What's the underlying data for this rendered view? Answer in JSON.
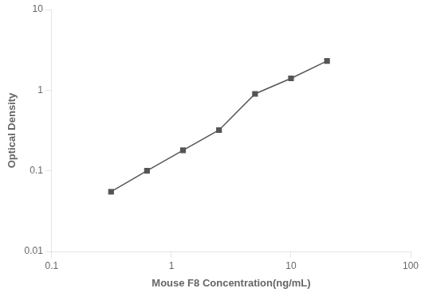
{
  "chart_data": {
    "type": "line",
    "x": [
      0.313,
      0.625,
      1.25,
      2.5,
      5.0,
      10.0,
      20.0
    ],
    "values": [
      0.055,
      0.1,
      0.18,
      0.32,
      0.9,
      1.4,
      2.3
    ],
    "color": "#555555",
    "marker": "square",
    "xlabel": "Mouse F8 Concentration(ng/mL)",
    "ylabel": "Optical Density",
    "xlim": [
      0.1,
      100
    ],
    "ylim": [
      0.01,
      10
    ],
    "xticks": [
      0.1,
      1,
      10,
      100
    ],
    "yticks": [
      0.01,
      0.1,
      1,
      10
    ],
    "log": true,
    "grid": false
  }
}
